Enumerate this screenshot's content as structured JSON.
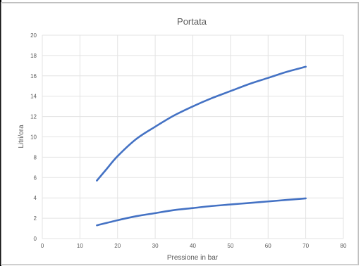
{
  "chart_data": {
    "type": "line",
    "title": "Portata",
    "xlabel": "Pressione in bar",
    "ylabel": "Litri/ora",
    "xlim": [
      0,
      80
    ],
    "ylim": [
      0,
      20
    ],
    "xticks": [
      0,
      10,
      20,
      30,
      40,
      50,
      60,
      70,
      80
    ],
    "yticks": [
      0,
      2,
      4,
      6,
      8,
      10,
      12,
      14,
      16,
      18,
      20
    ],
    "grid": true,
    "legend": "none",
    "series": [
      {
        "color": "#4472c4",
        "x": [
          14.5,
          17,
          20,
          25,
          30,
          35,
          40,
          45,
          50,
          55,
          60,
          65,
          70
        ],
        "y": [
          5.7,
          6.8,
          8.1,
          9.8,
          11.0,
          12.1,
          13.0,
          13.8,
          14.5,
          15.2,
          15.8,
          16.4,
          16.9
        ]
      },
      {
        "color": "#4472c4",
        "x": [
          14.5,
          20,
          25,
          30,
          35,
          40,
          45,
          50,
          55,
          60,
          65,
          70
        ],
        "y": [
          1.3,
          1.8,
          2.2,
          2.5,
          2.8,
          3.0,
          3.2,
          3.35,
          3.5,
          3.65,
          3.8,
          3.95
        ]
      }
    ]
  }
}
